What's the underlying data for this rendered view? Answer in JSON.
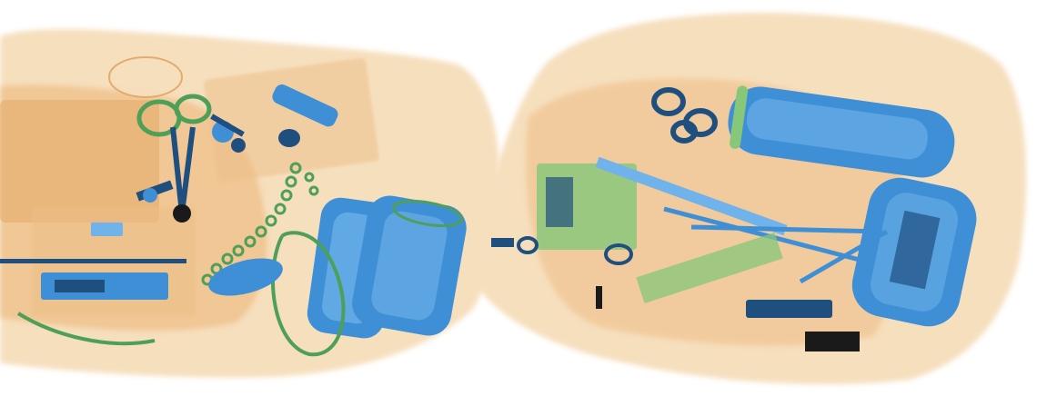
{
  "scan": {
    "background": "#ffffff",
    "colors": {
      "organic_light": "#f6dfbd",
      "organic_mid": "#eebf88",
      "organic_dark": "#e3a766",
      "inorganic_green": "#86c77a",
      "inorganic_green_dark": "#4e9f57",
      "metal_blue": "#3f8fd6",
      "metal_blue_light": "#6fb3ea",
      "metal_dark": "#1f4f7f",
      "dense_black": "#1a1a1a"
    },
    "bags": [
      {
        "name": "left-bag",
        "objects": [
          "clear-plastic-container",
          "tablet-or-laptop",
          "coil-spring",
          "scissors",
          "tangled-keys",
          "blue-bottle-tall",
          "blue-bottle-short",
          "chain-links",
          "metal-rod",
          "hinge-plate",
          "green-cable-loop"
        ]
      },
      {
        "name": "right-bag",
        "objects": [
          "blue-cylinder-horizontal",
          "blue-cylinder-vertical",
          "eyeglasses",
          "forks-and-utensils",
          "circuit-board",
          "zipper",
          "keyring",
          "battery-pack"
        ]
      }
    ]
  }
}
